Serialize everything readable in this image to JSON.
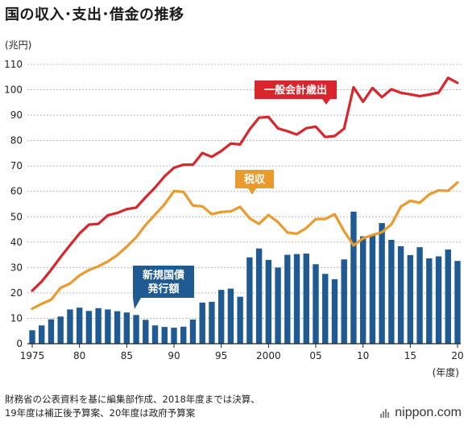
{
  "title": "国の収入･支出･借金の推移",
  "source_note": "財務省の公表資料を基に編集部作成、2018年度までは決算、\n19年度は補正後予算案、20年度は政府予算案",
  "brand": "nippon.com",
  "colors": {
    "expenditure": "#d9262c",
    "tax": "#eb9a2d",
    "bonds": "#1f5a93",
    "grid": "#b8b8b8",
    "axis": "#222222"
  },
  "chart_data": {
    "type": "bar+line",
    "ylabel": "(兆円)",
    "xlabel": "(年度)",
    "ylim": [
      0,
      110
    ],
    "yticks": [
      0,
      10,
      20,
      30,
      40,
      50,
      60,
      70,
      80,
      90,
      100,
      110
    ],
    "x_tick_labels": [
      {
        "year": 1975,
        "label": "1975"
      },
      {
        "year": 1980,
        "label": "80"
      },
      {
        "year": 1985,
        "label": "85"
      },
      {
        "year": 1990,
        "label": "90"
      },
      {
        "year": 1995,
        "label": "95"
      },
      {
        "year": 2000,
        "label": "2000"
      },
      {
        "year": 2005,
        "label": "05"
      },
      {
        "year": 2010,
        "label": "10"
      },
      {
        "year": 2015,
        "label": "15"
      },
      {
        "year": 2020,
        "label": "20"
      }
    ],
    "grid": "horizontal",
    "years": [
      1975,
      1976,
      1977,
      1978,
      1979,
      1980,
      1981,
      1982,
      1983,
      1984,
      1985,
      1986,
      1987,
      1988,
      1989,
      1990,
      1991,
      1992,
      1993,
      1994,
      1995,
      1996,
      1997,
      1998,
      1999,
      2000,
      2001,
      2002,
      2003,
      2004,
      2005,
      2006,
      2007,
      2008,
      2009,
      2010,
      2011,
      2012,
      2013,
      2014,
      2015,
      2016,
      2017,
      2018,
      2019,
      2020
    ],
    "series": [
      {
        "key": "expenditure",
        "name": "一般会計歳出",
        "kind": "line",
        "values": [
          20.9,
          24.5,
          29.1,
          34.1,
          38.8,
          43.4,
          46.9,
          47.2,
          50.6,
          51.5,
          53.0,
          53.6,
          57.7,
          61.5,
          65.9,
          69.3,
          70.5,
          70.5,
          75.1,
          73.6,
          75.9,
          78.8,
          78.5,
          84.4,
          89.0,
          89.3,
          84.8,
          83.7,
          82.4,
          84.9,
          85.5,
          81.4,
          81.8,
          84.7,
          101.0,
          95.3,
          100.7,
          97.1,
          100.2,
          98.8,
          98.2,
          97.5,
          98.1,
          98.9,
          104.7,
          102.7
        ]
      },
      {
        "key": "tax",
        "name": "税収",
        "kind": "line",
        "values": [
          13.8,
          15.7,
          17.3,
          22.0,
          23.7,
          26.9,
          29.0,
          30.5,
          32.4,
          34.9,
          38.2,
          41.9,
          46.8,
          50.8,
          54.9,
          60.1,
          59.8,
          54.4,
          54.1,
          51.0,
          51.9,
          52.1,
          53.9,
          49.4,
          47.2,
          50.7,
          47.9,
          43.8,
          43.3,
          45.6,
          49.1,
          49.1,
          51.0,
          44.3,
          38.7,
          41.5,
          42.8,
          43.9,
          47.0,
          54.0,
          56.3,
          55.5,
          58.8,
          60.4,
          60.2,
          63.5
        ]
      },
      {
        "key": "bonds",
        "name": "新規国債発行額",
        "kind": "bar",
        "values": [
          5.3,
          7.2,
          9.6,
          10.7,
          13.5,
          14.2,
          12.9,
          14.0,
          13.5,
          12.8,
          12.3,
          11.3,
          9.4,
          7.2,
          6.6,
          6.3,
          6.7,
          9.5,
          16.2,
          16.5,
          21.2,
          21.7,
          18.5,
          34.0,
          37.5,
          33.0,
          30.0,
          35.0,
          35.3,
          35.5,
          31.3,
          27.5,
          25.4,
          33.2,
          52.0,
          42.3,
          42.8,
          47.5,
          40.9,
          38.4,
          34.9,
          38.0,
          33.6,
          34.4,
          37.1,
          32.6
        ]
      }
    ]
  }
}
